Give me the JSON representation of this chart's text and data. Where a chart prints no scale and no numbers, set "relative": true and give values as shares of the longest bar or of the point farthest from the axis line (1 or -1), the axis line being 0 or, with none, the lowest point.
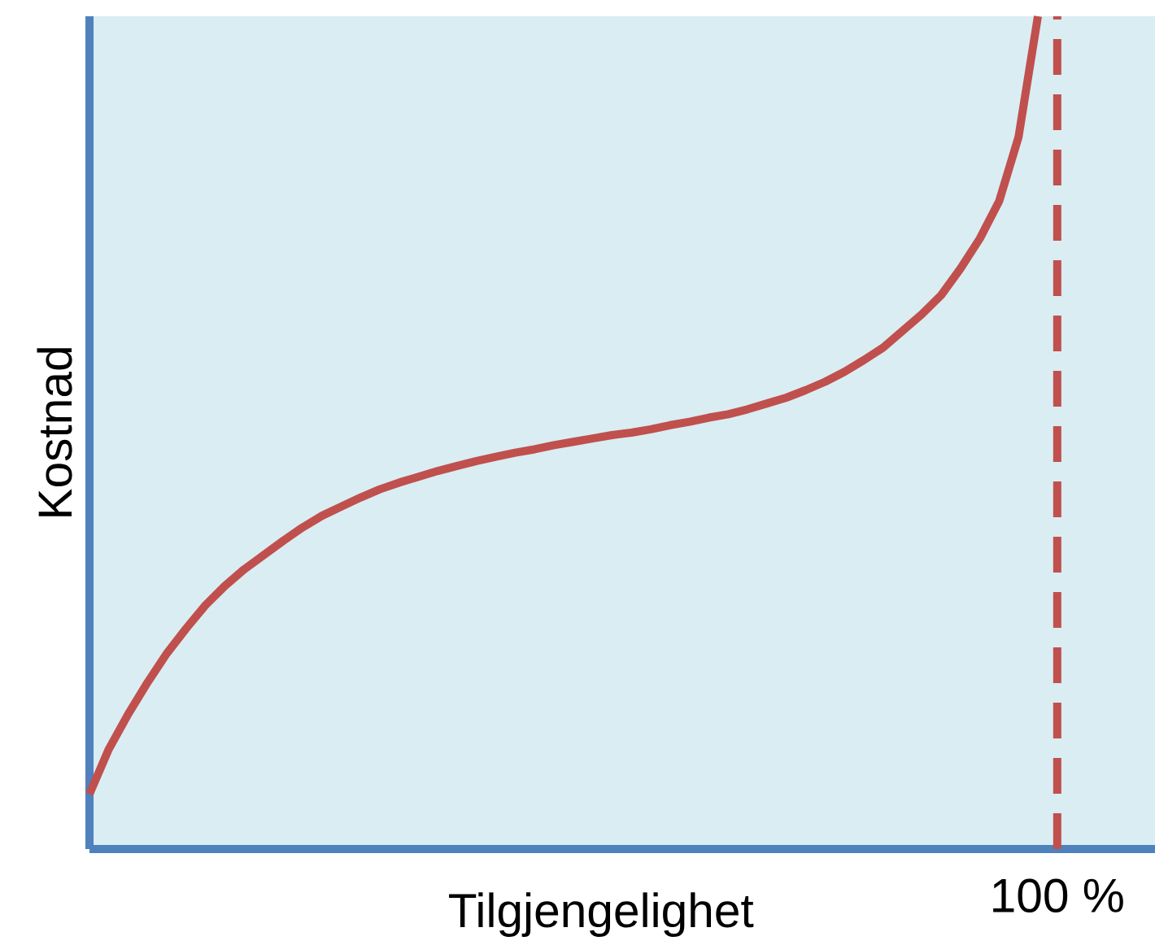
{
  "chart_data": {
    "type": "line",
    "relative": true,
    "xlabel": "Tilgjengelighet",
    "ylabel": "Kostnad",
    "categories": [
      null,
      null,
      null,
      null,
      null,
      null,
      null,
      null,
      null,
      null,
      null,
      null,
      null,
      null,
      null,
      null,
      null,
      null,
      null,
      null,
      null,
      null,
      null,
      null,
      null,
      null,
      null,
      null,
      null,
      null,
      null,
      null,
      null,
      null,
      null,
      null,
      null,
      null,
      null,
      null,
      null,
      null,
      null,
      null,
      null,
      null,
      null,
      null,
      null,
      null,
      null
    ],
    "series": [
      {
        "color": "#c0504d",
        "values": [
          0.066,
          0.12,
          0.162,
          0.2,
          0.235,
          0.265,
          0.293,
          0.316,
          0.336,
          0.353,
          0.37,
          0.386,
          0.4,
          0.411,
          0.422,
          0.432,
          0.44,
          0.447,
          0.454,
          0.46,
          0.466,
          0.471,
          0.476,
          0.48,
          0.485,
          0.489,
          0.493,
          0.497,
          0.5,
          0.504,
          0.509,
          0.513,
          0.518,
          0.522,
          0.528,
          0.535,
          0.542,
          0.551,
          0.561,
          0.573,
          0.587,
          0.602,
          0.622,
          0.642,
          0.665,
          0.697,
          0.733,
          0.778,
          0.855,
          1.0,
          null
        ]
      }
    ],
    "annotations": [
      "100 %"
    ]
  }
}
